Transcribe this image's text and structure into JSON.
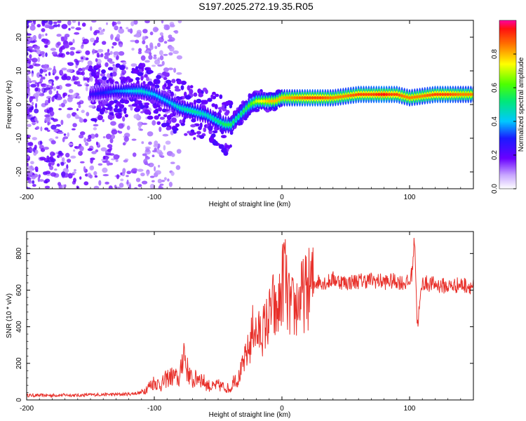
{
  "title": "S197.2025.272.19.35.R05",
  "colors": {
    "snr_line": "#e8302a",
    "axis": "#000000"
  },
  "chart_data": [
    {
      "type": "heatmap",
      "name": "spectrogram",
      "xlabel": "Height of straight line (km)",
      "ylabel": "Frequency (Hz)",
      "xlim": [
        -200,
        150
      ],
      "ylim": [
        -25,
        25
      ],
      "x_ticks": [
        "-200",
        "-100",
        "0",
        "100"
      ],
      "x_tick_values": [
        -200,
        -100,
        0,
        100
      ],
      "y_ticks": [
        "-20",
        "-10",
        "0",
        "10",
        "20"
      ],
      "y_tick_values": [
        -20,
        -10,
        0,
        10,
        20
      ],
      "colorbar_label": "Normalized spectral amplitude",
      "colorbar_ticks": [
        "0.0",
        "0.2",
        "0.4",
        "0.6",
        "0.8"
      ],
      "colorbar_tick_values": [
        0.0,
        0.2,
        0.4,
        0.6,
        0.8
      ],
      "ridge": {
        "x": [
          -150,
          -130,
          -110,
          -100,
          -90,
          -80,
          -70,
          -60,
          -50,
          -45,
          -40,
          -35,
          -30,
          -25,
          -20,
          -15,
          -10,
          -5,
          0,
          10,
          20,
          30,
          40,
          50,
          60,
          70,
          80,
          85,
          90,
          95,
          100,
          110,
          120,
          130,
          140,
          150
        ],
        "y": [
          3,
          4,
          4,
          3,
          1,
          -1,
          -2,
          -3,
          -5,
          -6,
          -6,
          -4,
          -2,
          0,
          1,
          1,
          1,
          1,
          2,
          2,
          2,
          2,
          2,
          2.5,
          3,
          3,
          3,
          3,
          3,
          2.5,
          2,
          2.5,
          3,
          3,
          3,
          3
        ],
        "amplitude": [
          0.25,
          0.35,
          0.45,
          0.4,
          0.4,
          0.45,
          0.5,
          0.45,
          0.5,
          0.55,
          0.55,
          0.5,
          0.55,
          0.6,
          0.7,
          0.75,
          0.8,
          0.8,
          0.8,
          0.85,
          0.9,
          0.9,
          0.85,
          0.85,
          0.9,
          0.9,
          0.95,
          0.9,
          0.9,
          0.85,
          0.85,
          0.85,
          0.9,
          0.9,
          0.85,
          0.85
        ]
      }
    },
    {
      "type": "line",
      "name": "snr",
      "xlabel": "Height of straight line (km)",
      "ylabel": "SNR (10 * v/v)",
      "xlim": [
        -200,
        150
      ],
      "ylim": [
        0,
        920
      ],
      "x_ticks": [
        "-200",
        "-100",
        "0",
        "100"
      ],
      "x_tick_values": [
        -200,
        -100,
        0,
        100
      ],
      "y_ticks": [
        "0",
        "200",
        "400",
        "600",
        "800"
      ],
      "y_tick_values": [
        0,
        200,
        400,
        600,
        800
      ],
      "series": [
        {
          "name": "SNR",
          "x": [
            -200,
            -190,
            -180,
            -170,
            -160,
            -150,
            -140,
            -130,
            -120,
            -110,
            -105,
            -100,
            -95,
            -90,
            -85,
            -80,
            -77,
            -75,
            -70,
            -65,
            -60,
            -55,
            -50,
            -45,
            -40,
            -37,
            -35,
            -30,
            -25,
            -22,
            -20,
            -15,
            -10,
            -7,
            -5,
            -2,
            0,
            2,
            4,
            6,
            8,
            10,
            15,
            20,
            25,
            30,
            35,
            40,
            45,
            50,
            60,
            70,
            80,
            90,
            95,
            100,
            102,
            104,
            106,
            110,
            120,
            130,
            140,
            150
          ],
          "y": [
            25,
            25,
            25,
            27,
            25,
            28,
            30,
            30,
            32,
            40,
            70,
            100,
            80,
            120,
            130,
            110,
            290,
            180,
            100,
            130,
            90,
            70,
            80,
            70,
            60,
            130,
            100,
            200,
            300,
            420,
            350,
            380,
            450,
            520,
            450,
            520,
            600,
            760,
            550,
            520,
            500,
            500,
            560,
            600,
            640,
            650,
            640,
            660,
            650,
            640,
            650,
            655,
            645,
            650,
            640,
            640,
            700,
            900,
            400,
            640,
            630,
            620,
            630,
            620
          ],
          "color": "#e8302a"
        }
      ]
    }
  ]
}
